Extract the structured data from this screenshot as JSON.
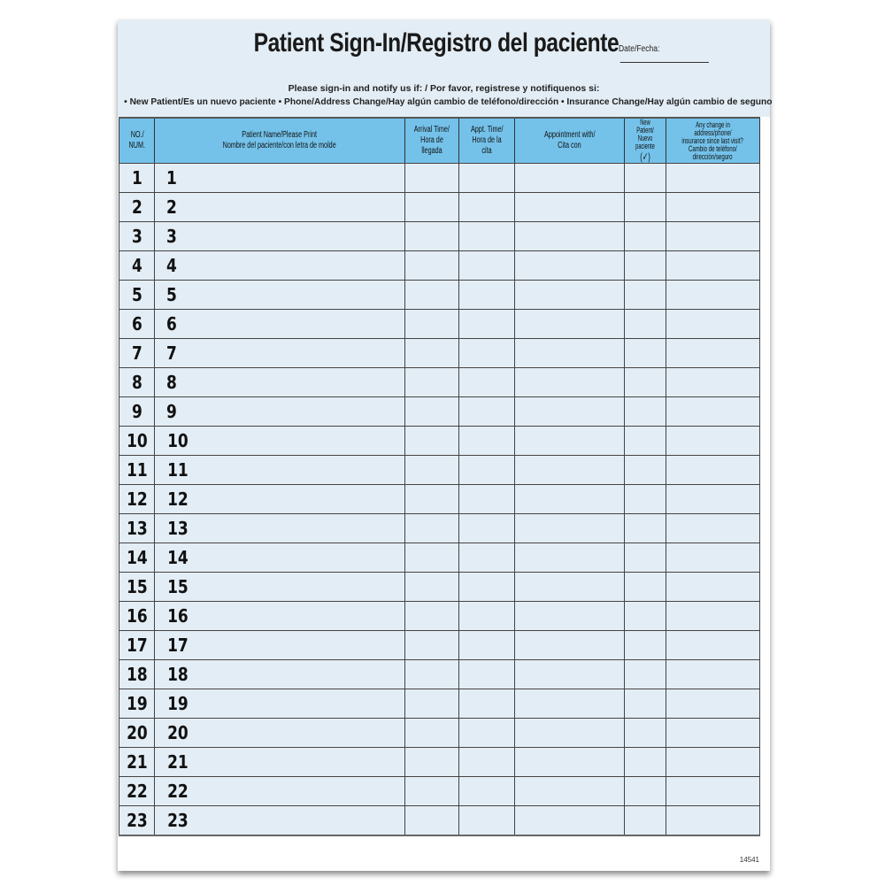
{
  "form": {
    "title": "Patient Sign-In/Registro del paciente",
    "date_label": "Date/Fecha:",
    "notify": "Please sign-in and notify us if: / Por favor, registrese y notifiquenos si:",
    "bullets": "• New Patient/Es un nuevo paciente • Phone/Address Change/Hay algún cambio de teléfono/dirección • Insurance Change/Hay algún cambio de seguno",
    "form_code": "14541"
  },
  "colors": {
    "header_blue": "#74c2ea",
    "row_blue": "#e3edf5"
  },
  "columns": [
    {
      "line1": "NO./",
      "line2": "NUM."
    },
    {
      "line1": "Patient Name/Please Print",
      "line2": "Nombre del paciente/con letra de molde"
    },
    {
      "line1": "Arrival Time/",
      "line2": "Hora de llegada"
    },
    {
      "line1": "Appt. Time/",
      "line2": "Hora de la cita"
    },
    {
      "line1": "Appointment with/",
      "line2": "Cita con"
    },
    {
      "line1": "New Patient/",
      "line2": "Nuevo paciente",
      "line3": "(✓)"
    },
    {
      "line1": "Any change in address/phone/",
      "line2": "insurance since last visit?",
      "line3": "Cambio de teléfono/",
      "line4": "dirección/seguro"
    }
  ],
  "rows": [
    "1",
    "2",
    "3",
    "4",
    "5",
    "6",
    "7",
    "8",
    "9",
    "10",
    "11",
    "12",
    "13",
    "14",
    "15",
    "16",
    "17",
    "18",
    "19",
    "20",
    "21",
    "22",
    "23"
  ]
}
